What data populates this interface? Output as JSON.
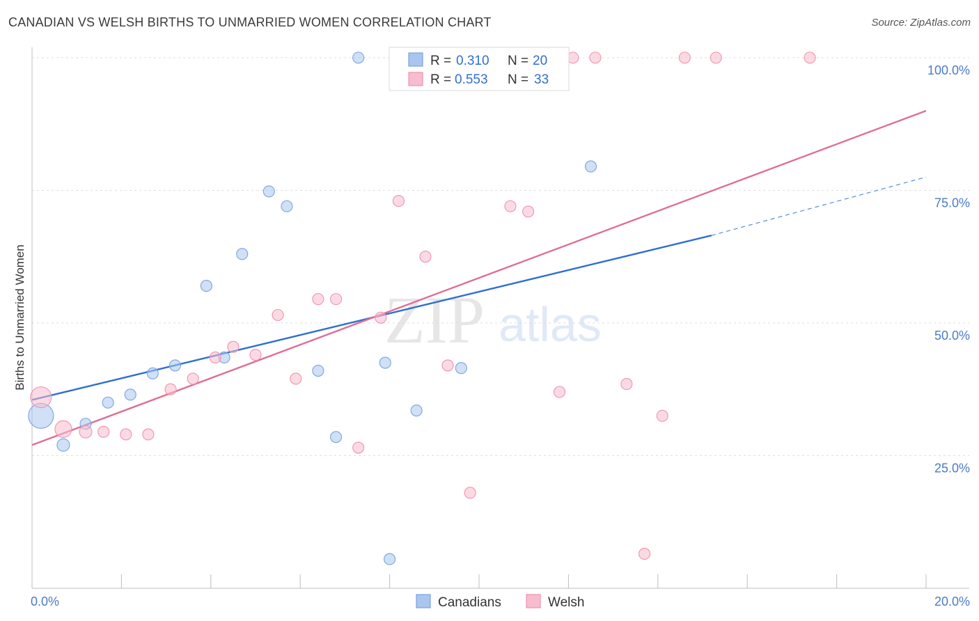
{
  "title": "CANADIAN VS WELSH BIRTHS TO UNMARRIED WOMEN CORRELATION CHART",
  "source": "Source: ZipAtlas.com",
  "watermark": {
    "zip": "ZIP",
    "atlas": "atlas"
  },
  "chart_data": {
    "type": "scatter",
    "xlabel": "",
    "ylabel": "Births to Unmarried Women",
    "xlim": [
      0,
      20
    ],
    "ylim": [
      0,
      103
    ],
    "x_tick_labels": [
      "0.0%",
      "20.0%"
    ],
    "y_ticks": [
      25,
      50,
      75,
      100
    ],
    "y_tick_labels": [
      "25.0%",
      "50.0%",
      "75.0%",
      "100.0%"
    ],
    "grid": true,
    "legend_position": "top-center",
    "series": [
      {
        "name": "Canadians",
        "color": "#a8c6f0",
        "stroke": "#7aa3dd",
        "line_color": "#2f6fd0",
        "R": "0.310",
        "N": "20",
        "trend": {
          "x0": 0,
          "y0": 35.5,
          "x1": 15.2,
          "y1": 66.5,
          "dash_to_x": 20,
          "dash_to_y": 77.5
        },
        "points": [
          {
            "x": 0.2,
            "y": 32.5,
            "s": 18
          },
          {
            "x": 0.7,
            "y": 27.0,
            "s": 9
          },
          {
            "x": 1.2,
            "y": 31.0,
            "s": 8
          },
          {
            "x": 1.7,
            "y": 35.0,
            "s": 8
          },
          {
            "x": 2.2,
            "y": 36.5,
            "s": 8
          },
          {
            "x": 2.7,
            "y": 40.5,
            "s": 8
          },
          {
            "x": 3.2,
            "y": 42.0,
            "s": 8
          },
          {
            "x": 3.9,
            "y": 57.0,
            "s": 8
          },
          {
            "x": 4.3,
            "y": 43.5,
            "s": 8
          },
          {
            "x": 4.7,
            "y": 63.0,
            "s": 8
          },
          {
            "x": 5.3,
            "y": 74.8,
            "s": 8
          },
          {
            "x": 5.7,
            "y": 72.0,
            "s": 8
          },
          {
            "x": 6.4,
            "y": 41.0,
            "s": 8
          },
          {
            "x": 6.8,
            "y": 28.5,
            "s": 8
          },
          {
            "x": 7.3,
            "y": 100.0,
            "s": 8
          },
          {
            "x": 7.9,
            "y": 42.5,
            "s": 8
          },
          {
            "x": 8.0,
            "y": 5.5,
            "s": 8
          },
          {
            "x": 8.6,
            "y": 33.5,
            "s": 8
          },
          {
            "x": 9.6,
            "y": 41.5,
            "s": 8
          },
          {
            "x": 12.5,
            "y": 79.5,
            "s": 8
          }
        ]
      },
      {
        "name": "Welsh",
        "color": "#f7bccd",
        "stroke": "#ee93ad",
        "line_color": "#e06d95",
        "R": "0.553",
        "N": "33",
        "trend": {
          "x0": 0,
          "y0": 27.0,
          "x1": 20,
          "y1": 90.0
        },
        "points": [
          {
            "x": 0.2,
            "y": 36.0,
            "s": 15
          },
          {
            "x": 0.7,
            "y": 30.0,
            "s": 12
          },
          {
            "x": 1.2,
            "y": 29.5,
            "s": 9
          },
          {
            "x": 1.6,
            "y": 29.5,
            "s": 8
          },
          {
            "x": 2.1,
            "y": 29.0,
            "s": 8
          },
          {
            "x": 2.6,
            "y": 29.0,
            "s": 8
          },
          {
            "x": 3.1,
            "y": 37.5,
            "s": 8
          },
          {
            "x": 3.6,
            "y": 39.5,
            "s": 8
          },
          {
            "x": 4.1,
            "y": 43.5,
            "s": 8
          },
          {
            "x": 4.5,
            "y": 45.5,
            "s": 8
          },
          {
            "x": 5.0,
            "y": 44.0,
            "s": 8
          },
          {
            "x": 5.5,
            "y": 51.5,
            "s": 8
          },
          {
            "x": 5.9,
            "y": 39.5,
            "s": 8
          },
          {
            "x": 6.4,
            "y": 54.5,
            "s": 8
          },
          {
            "x": 6.8,
            "y": 54.5,
            "s": 8
          },
          {
            "x": 7.3,
            "y": 26.5,
            "s": 8
          },
          {
            "x": 7.8,
            "y": 51.0,
            "s": 8
          },
          {
            "x": 8.2,
            "y": 73.0,
            "s": 8
          },
          {
            "x": 8.8,
            "y": 62.5,
            "s": 8
          },
          {
            "x": 9.3,
            "y": 42.0,
            "s": 8
          },
          {
            "x": 9.8,
            "y": 18.0,
            "s": 8
          },
          {
            "x": 10.3,
            "y": 100.0,
            "s": 8
          },
          {
            "x": 10.7,
            "y": 72.0,
            "s": 8
          },
          {
            "x": 11.1,
            "y": 71.0,
            "s": 8
          },
          {
            "x": 11.8,
            "y": 37.0,
            "s": 8
          },
          {
            "x": 12.1,
            "y": 100.0,
            "s": 8
          },
          {
            "x": 12.6,
            "y": 100.0,
            "s": 8
          },
          {
            "x": 13.3,
            "y": 38.5,
            "s": 8
          },
          {
            "x": 13.7,
            "y": 6.5,
            "s": 8
          },
          {
            "x": 14.1,
            "y": 32.5,
            "s": 8
          },
          {
            "x": 14.6,
            "y": 100.0,
            "s": 8
          },
          {
            "x": 15.3,
            "y": 100.0,
            "s": 8
          },
          {
            "x": 17.4,
            "y": 100.0,
            "s": 8
          }
        ]
      }
    ]
  },
  "legend": {
    "r_label": "R =",
    "n_label": "N ="
  }
}
